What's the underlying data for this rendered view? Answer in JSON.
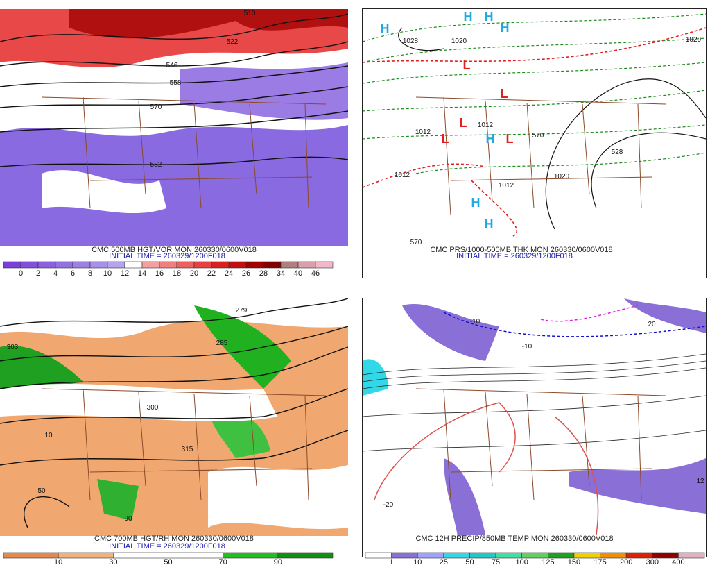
{
  "panels": [
    {
      "title": "CMC 500MB HGT/VOR MON 260330/0600V018",
      "subtitle": "INITIAL TIME = 260329/1200F018",
      "colorbar": {
        "labels": [
          0,
          2,
          4,
          6,
          8,
          10,
          12,
          14,
          16,
          18,
          20,
          22,
          24,
          26,
          28,
          34,
          40,
          46
        ],
        "colors": [
          "#7a3fd8",
          "#8150dc",
          "#8a60e0",
          "#9370e0",
          "#9d80e4",
          "#a890e8",
          "#b4a4ec",
          "#ffffff",
          "#f4a0a0",
          "#f08080",
          "#ec6060",
          "#e84040",
          "#d82020",
          "#c01010",
          "#a00000",
          "#800000",
          "#b08080",
          "#d8a0a8",
          "#f0b8c8"
        ]
      },
      "map_labels": [
        "510",
        "522",
        "546",
        "558",
        "570",
        "582"
      ]
    },
    {
      "title": "CMC PRS/1000-500MB THK MON 260330/0600V018",
      "subtitle": "INITIAL TIME = 260329/1200F018",
      "map_labels": [
        "1028",
        "1020",
        "1012",
        "1012",
        "570",
        "1012",
        "1012",
        "1020",
        "528",
        "1020",
        "570"
      ],
      "centers": [
        "H",
        "H",
        "H",
        "H",
        "L",
        "L",
        "L",
        "L",
        "H",
        "L",
        "H",
        "H"
      ]
    },
    {
      "title": "CMC 700MB HGT/RH MON 260330/0600V018",
      "subtitle": "INITIAL TIME = 260329/1200F018",
      "colorbar": {
        "labels": [
          10,
          30,
          50,
          70,
          90
        ],
        "colors": [
          "#e8874a",
          "#f4b07c",
          "#ffffff",
          "#ffffff",
          "#20c020",
          "#109010"
        ]
      },
      "map_labels": [
        "303",
        "279",
        "285",
        "300",
        "315",
        "10",
        "50",
        "90"
      ]
    },
    {
      "title": "CMC 12H PRECIP/850MB TEMP MON 260330/0600V018",
      "colorbar": {
        "labels": [
          1,
          10,
          25,
          50,
          75,
          100,
          125,
          150,
          175,
          200,
          300,
          400
        ],
        "colors": [
          "#ffffff",
          "#8a6fd6",
          "#a0a0ff",
          "#30d8e8",
          "#20c8c8",
          "#40e0a0",
          "#60d060",
          "#20a020",
          "#f0d000",
          "#f09000",
          "#e02000",
          "#900000",
          "#e0b0c0"
        ]
      },
      "map_labels": [
        "-10",
        "-10",
        "-20",
        "12",
        "20"
      ]
    }
  ]
}
